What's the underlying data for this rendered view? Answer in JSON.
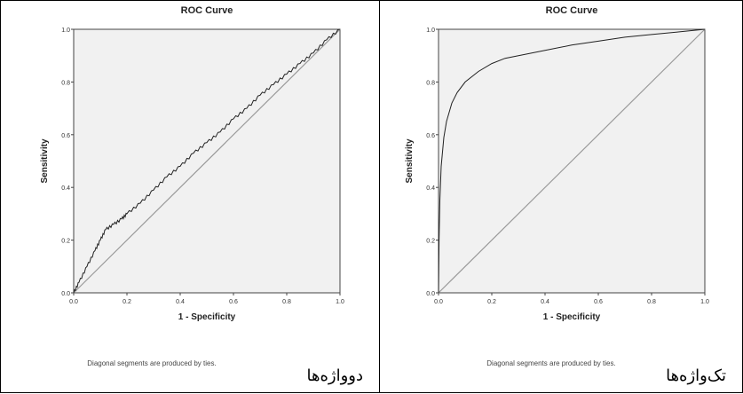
{
  "chart_data": [
    {
      "type": "line",
      "title": "ROC Curve",
      "xlabel": "1 - Specificity",
      "ylabel": "Sensitivity",
      "xlim": [
        0,
        1
      ],
      "ylim": [
        0,
        1
      ],
      "xticks": [
        "0.0",
        "0.2",
        "0.4",
        "0.6",
        "0.8",
        "1.0"
      ],
      "yticks": [
        "0.0",
        "0.2",
        "0.4",
        "0.6",
        "0.8",
        "1.0"
      ],
      "note": "Diagonal segments are produced by ties.",
      "caption": "دوواژه‌ها",
      "grid": false,
      "series": [
        {
          "x": [
            0,
            0.02,
            0.05,
            0.08,
            0.1,
            0.12,
            0.15,
            0.18,
            0.2,
            0.25,
            0.3,
            0.35,
            0.4,
            0.45,
            0.5,
            0.55,
            0.6,
            0.65,
            0.7,
            0.75,
            0.8,
            0.85,
            0.9,
            0.95,
            1.0
          ],
          "y": [
            0,
            0.04,
            0.1,
            0.16,
            0.2,
            0.24,
            0.26,
            0.28,
            0.3,
            0.34,
            0.39,
            0.44,
            0.48,
            0.53,
            0.57,
            0.61,
            0.66,
            0.7,
            0.75,
            0.79,
            0.83,
            0.87,
            0.91,
            0.96,
            1.0
          ]
        },
        {
          "x": [
            0,
            1
          ],
          "y": [
            0,
            1
          ]
        }
      ]
    },
    {
      "type": "line",
      "title": "ROC Curve",
      "xlabel": "1 - Specificity",
      "ylabel": "Sensitivity",
      "xlim": [
        0,
        1
      ],
      "ylim": [
        0,
        1
      ],
      "xticks": [
        "0.0",
        "0.2",
        "0.4",
        "0.6",
        "0.8",
        "1.0"
      ],
      "yticks": [
        "0.0",
        "0.2",
        "0.4",
        "0.6",
        "0.8",
        "1.0"
      ],
      "note": "Diagonal segments are produced by ties.",
      "caption": "تک‌واژه‌ها",
      "grid": false,
      "series": [
        {
          "x": [
            0,
            0.002,
            0.005,
            0.01,
            0.02,
            0.03,
            0.05,
            0.07,
            0.1,
            0.15,
            0.2,
            0.25,
            0.3,
            0.4,
            0.5,
            0.6,
            0.7,
            0.8,
            0.9,
            1.0
          ],
          "y": [
            0,
            0.2,
            0.35,
            0.48,
            0.59,
            0.65,
            0.72,
            0.76,
            0.8,
            0.84,
            0.87,
            0.89,
            0.9,
            0.92,
            0.94,
            0.955,
            0.97,
            0.98,
            0.99,
            1.0
          ]
        },
        {
          "x": [
            0,
            1
          ],
          "y": [
            0,
            1
          ]
        }
      ]
    }
  ]
}
